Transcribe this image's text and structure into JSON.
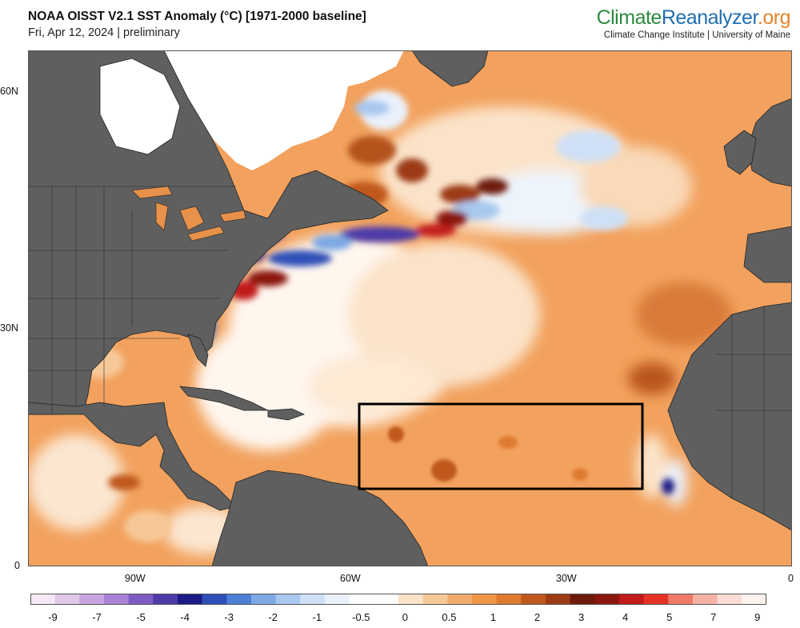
{
  "header": {
    "title": "NOAA OISST V2.1 SST Anomaly (°C) [1971-2000 baseline]",
    "subtitle": "Fri, Apr 12, 2024 | preliminary",
    "brand_part1": "Climate",
    "brand_part2": "Reanalyzer",
    "brand_part3": ".org",
    "brand_sub": "Climate Change Institute | University of Maine"
  },
  "axes": {
    "lat_ticks": [
      "60N",
      "30N",
      "0"
    ],
    "lon_ticks": [
      "90W",
      "60W",
      "30W",
      "0"
    ]
  },
  "legend": {
    "labels": [
      "-9",
      "-7",
      "-5",
      "-4",
      "-3",
      "-2",
      "-1",
      "-0.5",
      "0",
      "0.5",
      "1",
      "2",
      "3",
      "4",
      "5",
      "7",
      "9"
    ],
    "colors": [
      "#f4e9f4",
      "#e2c8e8",
      "#c9a5e0",
      "#a982d6",
      "#7d5dc3",
      "#4d3aa8",
      "#1b1b86",
      "#2f4fb8",
      "#4d7fd4",
      "#7ea9e4",
      "#a9c8ef",
      "#cfe0f6",
      "#eaf1fb",
      "#ffffff",
      "#ffffff",
      "#fbe3c9",
      "#f7c897",
      "#f2ad6c",
      "#ee9548",
      "#df7a30",
      "#c0581d",
      "#9c3b14",
      "#6e1b0c",
      "#8a1710",
      "#c11a1a",
      "#e53224",
      "#ef7a6a",
      "#f5b3a6",
      "#fbdcd4",
      "#fdf1ee"
    ]
  },
  "colors": {
    "land": "#5f5f5f",
    "ocean_base": "#f2a25e",
    "warm_dark": "#b4521f",
    "cold": "#3b5fc6",
    "ice": "#ffffff"
  }
}
